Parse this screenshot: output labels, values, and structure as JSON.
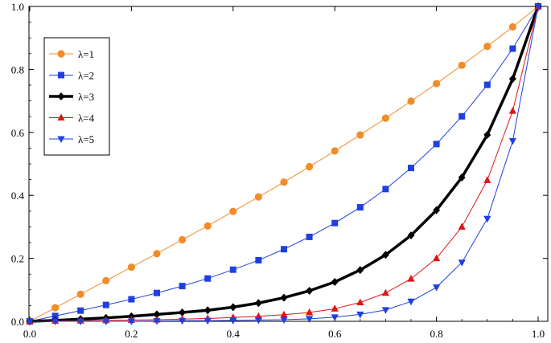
{
  "chart_data": {
    "type": "line",
    "title": "",
    "xlabel": "",
    "ylabel": "",
    "xlim": [
      0,
      1
    ],
    "ylim": [
      0,
      1
    ],
    "x_ticks": [
      "0.0",
      "0.2",
      "0.4",
      "0.6",
      "0.8",
      "1.0"
    ],
    "y_ticks": [
      "0.0",
      "0.2",
      "0.4",
      "0.6",
      "0.8",
      "1.0"
    ],
    "grid": false,
    "legend_position": "top-left",
    "x": [
      0,
      0.05,
      0.1,
      0.15,
      0.2,
      0.25,
      0.3,
      0.35,
      0.4,
      0.45,
      0.5,
      0.55,
      0.6,
      0.65,
      0.7,
      0.75,
      0.8,
      0.85,
      0.9,
      0.95,
      1.0
    ],
    "series": [
      {
        "name": "λ=1",
        "color": "#f28c28",
        "marker": "circle",
        "line_width": "thin",
        "values": [
          0,
          0.043,
          0.086,
          0.129,
          0.172,
          0.215,
          0.259,
          0.303,
          0.349,
          0.395,
          0.442,
          0.491,
          0.541,
          0.592,
          0.645,
          0.699,
          0.755,
          0.813,
          0.873,
          0.935,
          1.0
        ]
      },
      {
        "name": "λ=2",
        "color": "#1f3fe0",
        "marker": "square",
        "line_width": "thin",
        "values": [
          0,
          0.017,
          0.034,
          0.052,
          0.07,
          0.09,
          0.112,
          0.136,
          0.164,
          0.194,
          0.229,
          0.268,
          0.312,
          0.362,
          0.42,
          0.487,
          0.563,
          0.651,
          0.751,
          0.866,
          1.0
        ]
      },
      {
        "name": "λ=3",
        "color": "#000000",
        "marker": "diamond",
        "line_width": "thick",
        "values": [
          0,
          0.003,
          0.007,
          0.011,
          0.016,
          0.022,
          0.028,
          0.035,
          0.045,
          0.058,
          0.075,
          0.097,
          0.125,
          0.163,
          0.211,
          0.273,
          0.353,
          0.457,
          0.592,
          0.77,
          1.0
        ]
      },
      {
        "name": "λ=4",
        "color": "#e01414",
        "marker": "triangle-up",
        "line_width": "thin",
        "values": [
          0,
          0.001,
          0.002,
          0.003,
          0.004,
          0.005,
          0.007,
          0.009,
          0.012,
          0.016,
          0.021,
          0.028,
          0.04,
          0.06,
          0.09,
          0.135,
          0.2,
          0.3,
          0.448,
          0.668,
          1.0
        ]
      },
      {
        "name": "λ=5",
        "color": "#1f3fe0",
        "marker": "triangle-down",
        "line_width": "thin",
        "values": [
          0,
          0,
          0,
          0,
          0,
          0.001,
          0.002,
          0.002,
          0.003,
          0.004,
          0.005,
          0.008,
          0.013,
          0.022,
          0.036,
          0.063,
          0.108,
          0.187,
          0.326,
          0.573,
          1.0
        ]
      }
    ]
  }
}
